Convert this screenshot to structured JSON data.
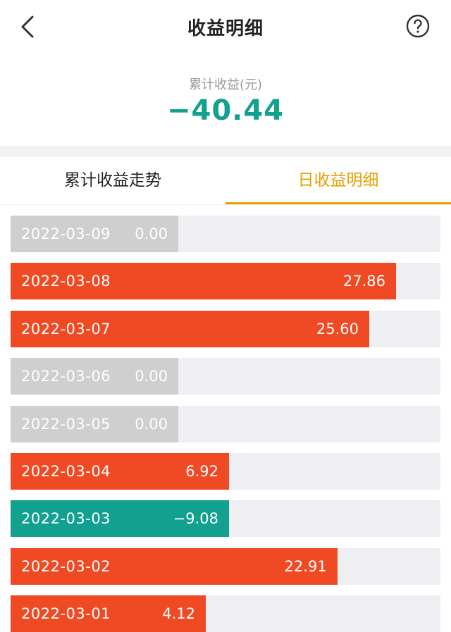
{
  "header": {
    "title": "收益明细",
    "back_icon": "chevron-left-icon",
    "help_icon": "question-circle-icon"
  },
  "summary": {
    "label": "累计收益(元)",
    "value": "−40.44",
    "color": "#12a08f"
  },
  "tabs": [
    {
      "label": "累计收益走势",
      "active": false
    },
    {
      "label": "日收益明细",
      "active": true
    }
  ],
  "colors": {
    "positive": "#f04a24",
    "negative": "#12a08f",
    "zero": "#cfcfcf",
    "track": "#efeff3",
    "accent": "#e7a200"
  },
  "daily": [
    {
      "date": "2022-03-09",
      "value": 0.0,
      "label": "0.00"
    },
    {
      "date": "2022-03-08",
      "value": 27.86,
      "label": "27.86"
    },
    {
      "date": "2022-03-07",
      "value": 25.6,
      "label": "25.60"
    },
    {
      "date": "2022-03-06",
      "value": 0.0,
      "label": "0.00"
    },
    {
      "date": "2022-03-05",
      "value": 0.0,
      "label": "0.00"
    },
    {
      "date": "2022-03-04",
      "value": 6.92,
      "label": "6.92"
    },
    {
      "date": "2022-03-03",
      "value": -9.08,
      "label": "−9.08"
    },
    {
      "date": "2022-03-02",
      "value": 22.91,
      "label": "22.91"
    },
    {
      "date": "2022-03-01",
      "value": 4.12,
      "label": "4.12"
    }
  ]
}
